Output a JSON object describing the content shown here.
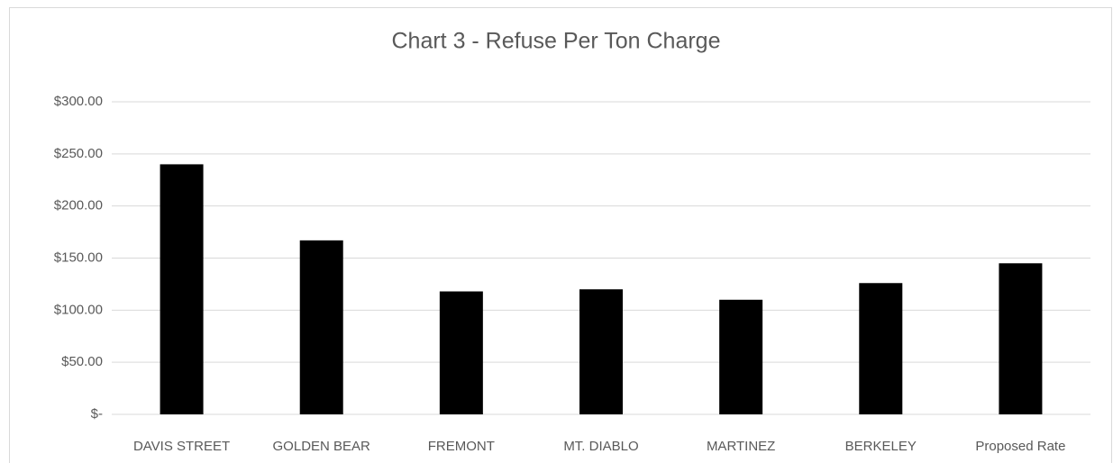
{
  "chart_data": {
    "type": "bar",
    "title": "Chart 3 - Refuse Per Ton Charge",
    "categories": [
      "DAVIS STREET",
      "GOLDEN BEAR",
      "FREMONT",
      "MT. DIABLO",
      "MARTINEZ",
      "BERKELEY",
      "Proposed Rate"
    ],
    "values": [
      240,
      167,
      118,
      120,
      110,
      126,
      145
    ],
    "color": "#000000",
    "ylim": [
      0,
      300
    ],
    "yticks": [
      {
        "value": 0,
        "label": "$-"
      },
      {
        "value": 50,
        "label": "$50.00"
      },
      {
        "value": 100,
        "label": "$100.00"
      },
      {
        "value": 150,
        "label": "$150.00"
      },
      {
        "value": 200,
        "label": "$200.00"
      },
      {
        "value": 250,
        "label": "$250.00"
      },
      {
        "value": 300,
        "label": "$300.00"
      }
    ],
    "grid": true
  }
}
